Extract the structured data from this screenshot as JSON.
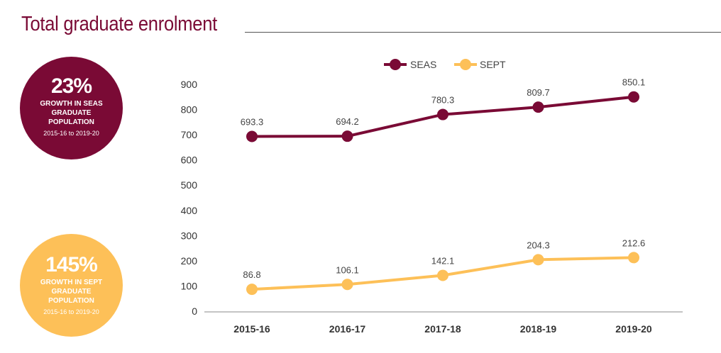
{
  "title": "Total graduate enrolment",
  "callouts": {
    "seas": {
      "pct": "23%",
      "desc": "GROWTH IN SEAS GRADUATE POPULATION",
      "range": "2015-16 to 2019-20"
    },
    "sept": {
      "pct": "145%",
      "desc": "GROWTH IN SEPT GRADUATE POPULATION",
      "range": "2015-16 to 2019-20"
    }
  },
  "colors": {
    "seas": "#7a0a35",
    "sept": "#fdc058"
  },
  "chart_data": {
    "type": "line",
    "title": "Total graduate enrolment",
    "categories": [
      "2015-16",
      "2016-17",
      "2017-18",
      "2018-19",
      "2019-20"
    ],
    "series": [
      {
        "name": "SEAS",
        "values": [
          693.3,
          694.2,
          780.3,
          809.7,
          850.1
        ],
        "labels": [
          "693.3",
          "694.2",
          "780.3",
          "809.7",
          "850.1"
        ]
      },
      {
        "name": "SEPT",
        "values": [
          86.8,
          106.1,
          142.1,
          204.3,
          212.6
        ],
        "labels": [
          "86.8",
          "106.1",
          "142.1",
          "204.3",
          "212.6"
        ]
      }
    ],
    "yticks": [
      "0",
      "100",
      "200",
      "300",
      "400",
      "500",
      "600",
      "700",
      "800",
      "900"
    ],
    "ylim": [
      0,
      900
    ],
    "xlabel": "",
    "ylabel": "",
    "legend": "top-center",
    "grid": false
  }
}
